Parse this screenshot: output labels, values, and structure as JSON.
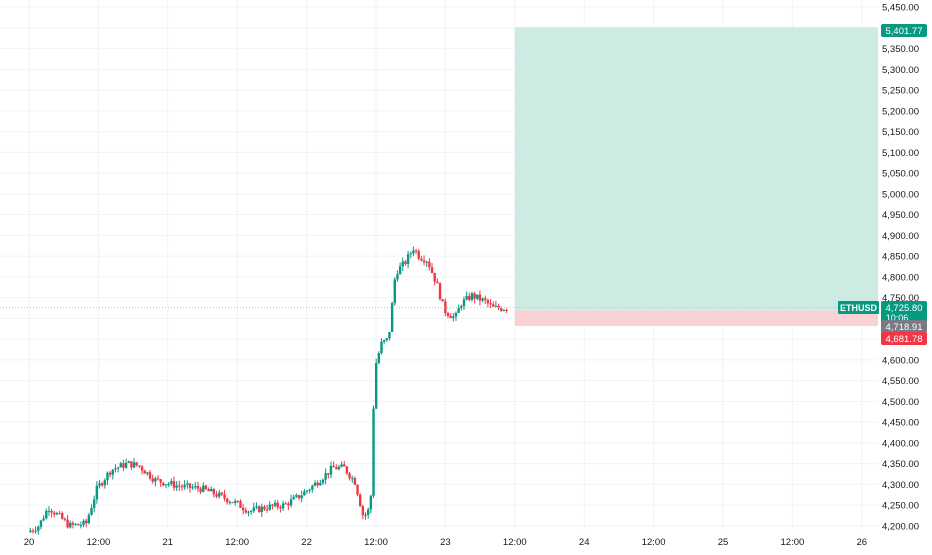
{
  "symbol": "ETHUSD",
  "colors": {
    "up": "#089981",
    "down": "#f23645",
    "profit_zone": "#cdebe3",
    "loss_zone": "#f9d2d3",
    "grid": "#f0f3fa",
    "axis_text": "#131722",
    "target_badge": "#089981",
    "stop_badge": "#f23645",
    "entry_badge": "#787b86",
    "crosshair": "#9bd3c6"
  },
  "price_axis": {
    "ticks": [
      "5,450.00",
      "5,400.00",
      "5,350.00",
      "5,300.00",
      "5,250.00",
      "5,200.00",
      "5,150.00",
      "5,100.00",
      "5,050.00",
      "5,000.00",
      "4,950.00",
      "4,900.00",
      "4,850.00",
      "4,800.00",
      "4,750.00",
      "4,700.00",
      "4,650.00",
      "4,600.00",
      "4,550.00",
      "4,500.00",
      "4,450.00",
      "4,400.00",
      "4,350.00",
      "4,300.00",
      "4,250.00",
      "4,200.00"
    ],
    "target_label": "5,401.77",
    "current_price": "4,725.80",
    "countdown": "10:06",
    "entry_label": "4,718.91",
    "stop_label": "4,681.78"
  },
  "time_axis": {
    "ticks": [
      "20",
      "12:00",
      "21",
      "12:00",
      "22",
      "12:00",
      "23",
      "12:00",
      "24",
      "12:00",
      "25",
      "12:00",
      "26"
    ]
  },
  "chart_data": {
    "type": "candlestick",
    "ylim": [
      4190,
      5460
    ],
    "xlim_days": [
      20.0,
      26.08
    ],
    "position": {
      "target": 5401.77,
      "entry": 4718.91,
      "stop": 4681.78,
      "current": 4725.8
    },
    "anchors": [
      [
        20.0,
        4185
      ],
      [
        20.08,
        4200
      ],
      [
        20.15,
        4245
      ],
      [
        20.22,
        4225
      ],
      [
        20.3,
        4200
      ],
      [
        20.42,
        4205
      ],
      [
        20.5,
        4290
      ],
      [
        20.6,
        4335
      ],
      [
        20.72,
        4350
      ],
      [
        20.8,
        4345
      ],
      [
        20.92,
        4310
      ],
      [
        21.1,
        4295
      ],
      [
        21.25,
        4290
      ],
      [
        21.4,
        4270
      ],
      [
        21.5,
        4255
      ],
      [
        21.6,
        4235
      ],
      [
        21.72,
        4245
      ],
      [
        21.85,
        4250
      ],
      [
        21.95,
        4270
      ],
      [
        22.05,
        4295
      ],
      [
        22.2,
        4340
      ],
      [
        22.28,
        4340
      ],
      [
        22.36,
        4305
      ],
      [
        22.42,
        4220
      ],
      [
        22.47,
        4245
      ],
      [
        22.5,
        4580
      ],
      [
        22.55,
        4640
      ],
      [
        22.6,
        4650
      ],
      [
        22.65,
        4810
      ],
      [
        22.72,
        4835
      ],
      [
        22.78,
        4870
      ],
      [
        22.82,
        4850
      ],
      [
        22.88,
        4840
      ],
      [
        22.95,
        4780
      ],
      [
        23.0,
        4720
      ],
      [
        23.08,
        4700
      ],
      [
        23.12,
        4735
      ],
      [
        23.2,
        4755
      ],
      [
        23.3,
        4740
      ],
      [
        23.35,
        4725
      ],
      [
        23.45,
        4725
      ]
    ],
    "candle_count": 180
  }
}
